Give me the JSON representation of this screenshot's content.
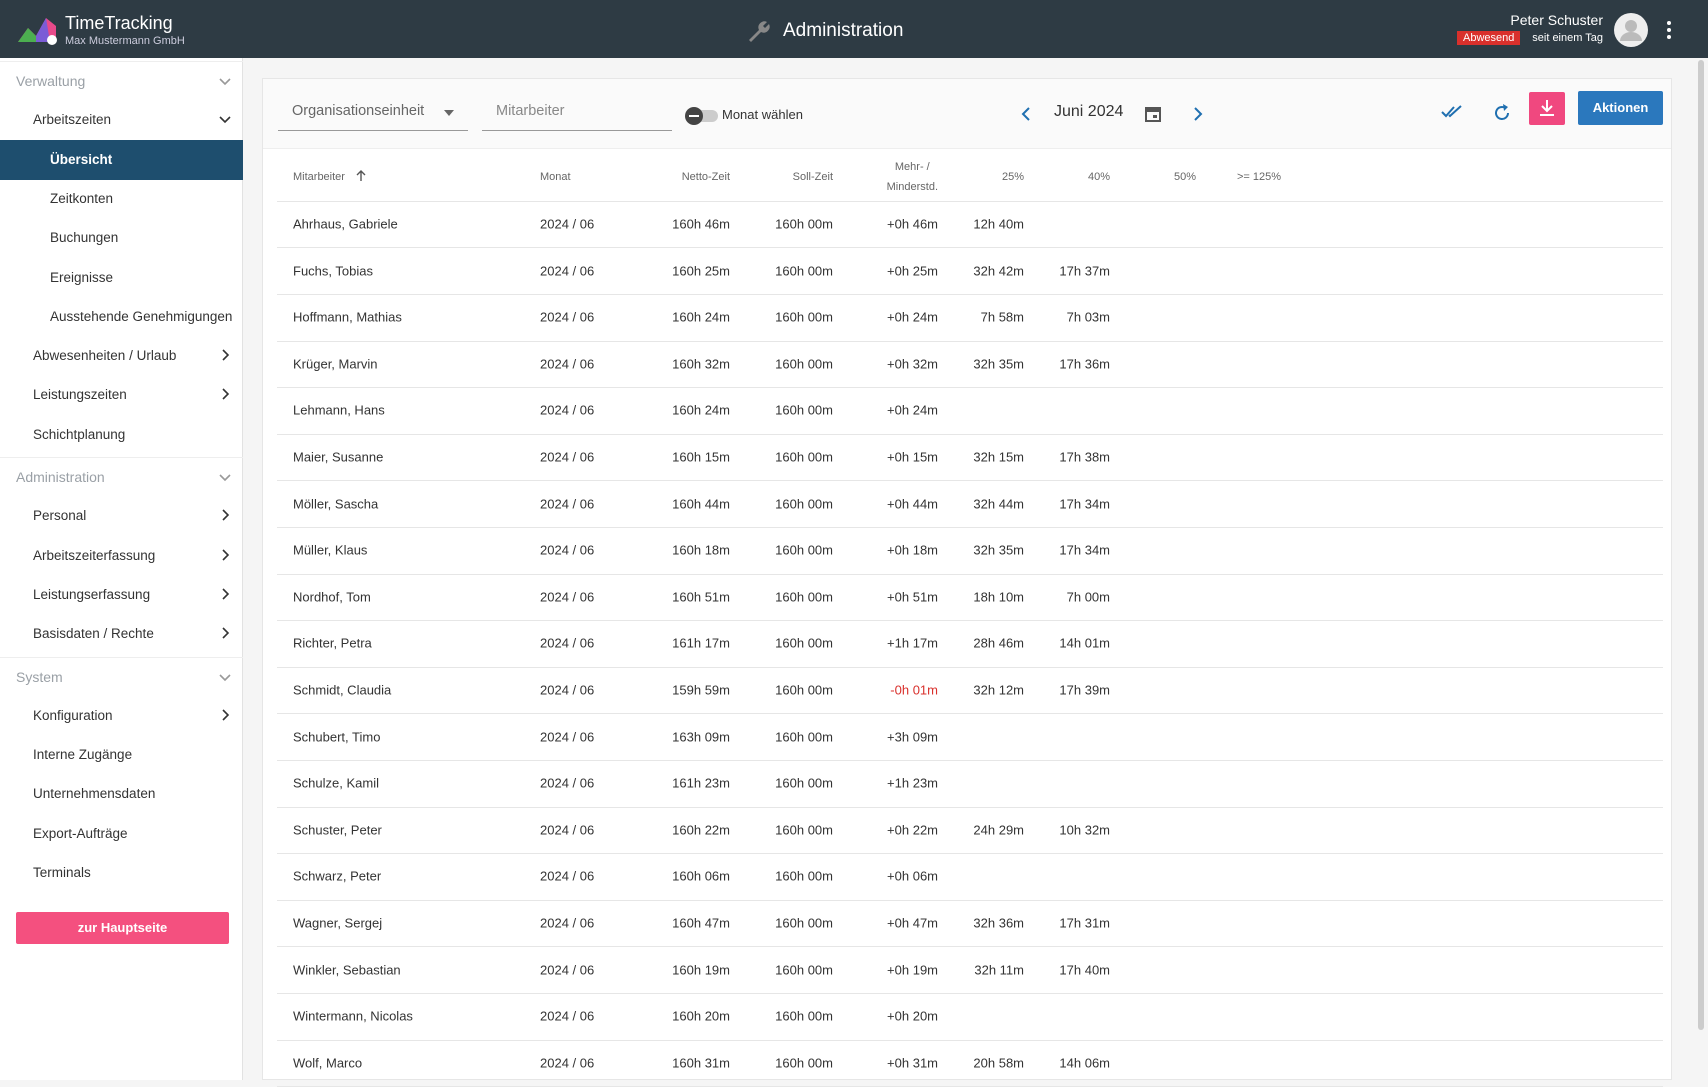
{
  "header": {
    "appName": "TimeTracking",
    "company": "Max Mustermann GmbH",
    "title": "Administration",
    "user": "Peter Schuster",
    "status": "Abwesend",
    "since": "seit einem Tag"
  },
  "sidebar": {
    "items": [
      {
        "label": "Verwaltung",
        "level": 0,
        "chevron": "down"
      },
      {
        "label": "Arbeitszeiten",
        "level": 1,
        "chevron": "down"
      },
      {
        "label": "Übersicht",
        "level": 2,
        "chevron": null,
        "active": true
      },
      {
        "label": "Zeitkonten",
        "level": 2,
        "chevron": null
      },
      {
        "label": "Buchungen",
        "level": 2,
        "chevron": null
      },
      {
        "label": "Ereignisse",
        "level": 2,
        "chevron": null
      },
      {
        "label": "Ausstehende Genehmigungen",
        "level": 2,
        "chevron": null
      },
      {
        "label": "Abwesenheiten / Urlaub",
        "level": 1,
        "chevron": "right"
      },
      {
        "label": "Leistungszeiten",
        "level": 1,
        "chevron": "right"
      },
      {
        "label": "Schichtplanung",
        "level": 1,
        "chevron": null
      },
      {
        "label": "Administration",
        "level": 0,
        "chevron": "down"
      },
      {
        "label": "Personal",
        "level": 1,
        "chevron": "right"
      },
      {
        "label": "Arbeitszeiterfassung",
        "level": 1,
        "chevron": "right"
      },
      {
        "label": "Leistungserfassung",
        "level": 1,
        "chevron": "right"
      },
      {
        "label": "Basisdaten / Rechte",
        "level": 1,
        "chevron": "right"
      },
      {
        "label": "System",
        "level": 0,
        "chevron": "down"
      },
      {
        "label": "Konfiguration",
        "level": 1,
        "chevron": "right"
      },
      {
        "label": "Interne Zugänge",
        "level": 1,
        "chevron": null
      },
      {
        "label": "Unternehmensdaten",
        "level": 1,
        "chevron": null
      },
      {
        "label": "Export-Aufträge",
        "level": 1,
        "chevron": null
      },
      {
        "label": "Terminals",
        "level": 1,
        "chevron": null
      }
    ],
    "button": "zur Hauptseite"
  },
  "toolbar": {
    "org": "Organisationseinheit",
    "employee": "Mitarbeiter",
    "toggle": "Monat wählen",
    "month": "Juni 2024",
    "actions": "Aktionen"
  },
  "table": {
    "columns": [
      "Mitarbeiter",
      "Monat",
      "Netto-Zeit",
      "Soll-Zeit",
      "Mehr- /\nMinderstd.",
      "25%",
      "40%",
      "50%",
      ">= 125%"
    ],
    "rows": [
      [
        "Ahrhaus, Gabriele",
        "2024 / 06",
        "160h 46m",
        "160h 00m",
        "+0h 46m",
        "12h 40m",
        null,
        null,
        null
      ],
      [
        "Fuchs, Tobias",
        "2024 / 06",
        "160h 25m",
        "160h 00m",
        "+0h 25m",
        "32h 42m",
        "17h 37m",
        null,
        null
      ],
      [
        "Hoffmann, Mathias",
        "2024 / 06",
        "160h 24m",
        "160h 00m",
        "+0h 24m",
        "7h 58m",
        "7h 03m",
        null,
        null
      ],
      [
        "Krüger, Marvin",
        "2024 / 06",
        "160h 32m",
        "160h 00m",
        "+0h 32m",
        "32h 35m",
        "17h 36m",
        null,
        null
      ],
      [
        "Lehmann, Hans",
        "2024 / 06",
        "160h 24m",
        "160h 00m",
        "+0h 24m",
        null,
        null,
        null,
        null
      ],
      [
        "Maier, Susanne",
        "2024 / 06",
        "160h 15m",
        "160h 00m",
        "+0h 15m",
        "32h 15m",
        "17h 38m",
        null,
        null
      ],
      [
        "Möller, Sascha",
        "2024 / 06",
        "160h 44m",
        "160h 00m",
        "+0h 44m",
        "32h 44m",
        "17h 34m",
        null,
        null
      ],
      [
        "Müller, Klaus",
        "2024 / 06",
        "160h 18m",
        "160h 00m",
        "+0h 18m",
        "32h 35m",
        "17h 34m",
        null,
        null
      ],
      [
        "Nordhof, Tom",
        "2024 / 06",
        "160h 51m",
        "160h 00m",
        "+0h 51m",
        "18h 10m",
        "7h 00m",
        null,
        null
      ],
      [
        "Richter, Petra",
        "2024 / 06",
        "161h 17m",
        "160h 00m",
        "+1h 17m",
        "28h 46m",
        "14h 01m",
        null,
        null
      ],
      [
        "Schmidt, Claudia",
        "2024 / 06",
        "159h 59m",
        "160h 00m",
        "-0h 01m",
        "32h 12m",
        "17h 39m",
        null,
        null
      ],
      [
        "Schubert, Timo",
        "2024 / 06",
        "163h 09m",
        "160h 00m",
        "+3h 09m",
        null,
        null,
        null,
        null
      ],
      [
        "Schulze, Kamil",
        "2024 / 06",
        "161h 23m",
        "160h 00m",
        "+1h 23m",
        null,
        null,
        null,
        null
      ],
      [
        "Schuster, Peter",
        "2024 / 06",
        "160h 22m",
        "160h 00m",
        "+0h 22m",
        "24h 29m",
        "10h 32m",
        null,
        null
      ],
      [
        "Schwarz, Peter",
        "2024 / 06",
        "160h 06m",
        "160h 00m",
        "+0h 06m",
        null,
        null,
        null,
        null
      ],
      [
        "Wagner, Sergej",
        "2024 / 06",
        "160h 47m",
        "160h 00m",
        "+0h 47m",
        "32h 36m",
        "17h 31m",
        null,
        null
      ],
      [
        "Winkler, Sebastian",
        "2024 / 06",
        "160h 19m",
        "160h 00m",
        "+0h 19m",
        "32h 11m",
        "17h 40m",
        null,
        null
      ],
      [
        "Wintermann, Nicolas",
        "2024 / 06",
        "160h 20m",
        "160h 00m",
        "+0h 20m",
        null,
        null,
        null,
        null
      ],
      [
        "Wolf, Marco",
        "2024 / 06",
        "160h 31m",
        "160h 00m",
        "+0h 31m",
        "20h 58m",
        "14h 06m",
        null,
        null
      ]
    ]
  }
}
